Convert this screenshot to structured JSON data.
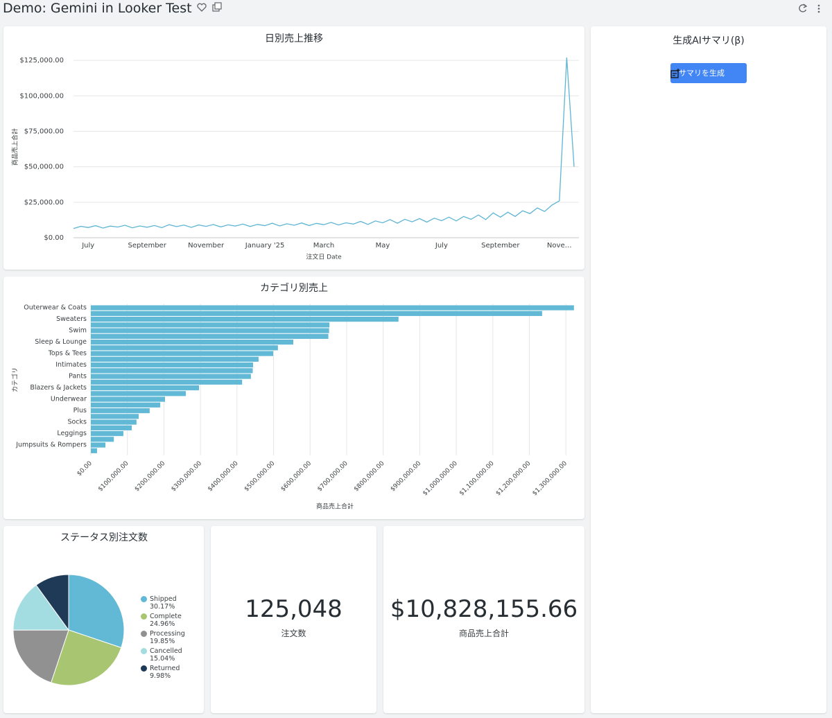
{
  "header": {
    "title": "Demo: Gemini in Looker Test"
  },
  "chart_data": [
    {
      "type": "line",
      "title": "日別売上推移",
      "x_label": "注文日 Date",
      "y_label": "商品売上合計",
      "color": "#5db5d3",
      "x": [
        "2024-06",
        "2024-06",
        "2024-07",
        "2024-07",
        "2024-07",
        "2024-07",
        "2024-08",
        "2024-08",
        "2024-08",
        "2024-08",
        "2024-09",
        "2024-09",
        "2024-09",
        "2024-09",
        "2024-10",
        "2024-10",
        "2024-10",
        "2024-10",
        "2024-11",
        "2024-11",
        "2024-11",
        "2024-11",
        "2024-12",
        "2024-12",
        "2024-12",
        "2024-12",
        "2025-01",
        "2025-01",
        "2025-01",
        "2025-01",
        "2025-02",
        "2025-02",
        "2025-02",
        "2025-02",
        "2025-03",
        "2025-03",
        "2025-03",
        "2025-03",
        "2025-04",
        "2025-04",
        "2025-04",
        "2025-04",
        "2025-05",
        "2025-05",
        "2025-05",
        "2025-05",
        "2025-06",
        "2025-06",
        "2025-06",
        "2025-06",
        "2025-07",
        "2025-07",
        "2025-07",
        "2025-07",
        "2025-08",
        "2025-08",
        "2025-08",
        "2025-08",
        "2025-09",
        "2025-09",
        "2025-09",
        "2025-09",
        "2025-10",
        "2025-10",
        "2025-10",
        "2025-10",
        "2025-11",
        "2025-11",
        "2025-11"
      ],
      "values": [
        6500,
        8000,
        7200,
        8500,
        6800,
        8200,
        7500,
        8800,
        7000,
        8300,
        7400,
        8600,
        7100,
        9200,
        7800,
        8900,
        7300,
        9000,
        8000,
        9300,
        7600,
        9100,
        8200,
        9600,
        7900,
        9400,
        8500,
        10200,
        8300,
        9800,
        8800,
        10400,
        8600,
        10100,
        9200,
        10800,
        9000,
        10500,
        9600,
        11500,
        9400,
        11800,
        10500,
        12800,
        10200,
        13000,
        11200,
        13500,
        11000,
        13800,
        12000,
        14500,
        11800,
        15000,
        13000,
        16000,
        12800,
        17500,
        14500,
        18000,
        15000,
        19000,
        17000,
        21000,
        18500,
        23000,
        26000,
        127000,
        50000
      ],
      "xticks": [
        {
          "value": "2024-07",
          "label": "July"
        },
        {
          "value": "2024-09",
          "label": "September"
        },
        {
          "value": "2024-11",
          "label": "November"
        },
        {
          "value": "2025-01",
          "label": "January '25"
        },
        {
          "value": "2025-03",
          "label": "March"
        },
        {
          "value": "2025-05",
          "label": "May"
        },
        {
          "value": "2025-07",
          "label": "July"
        },
        {
          "value": "2025-09",
          "label": "September"
        },
        {
          "value": "2025-11",
          "label": "Nove…"
        }
      ],
      "ylim": [
        0,
        127500
      ],
      "yticks": [
        {
          "value": 0,
          "label": "$0.00"
        },
        {
          "value": 25000,
          "label": "$25,000.00"
        },
        {
          "value": 50000,
          "label": "$50,000.00"
        },
        {
          "value": 75000,
          "label": "$75,000.00"
        },
        {
          "value": 100000,
          "label": "$100,000.00"
        },
        {
          "value": 125000,
          "label": "$125,000.00"
        }
      ],
      "grid": true
    },
    {
      "type": "bar",
      "orientation": "horizontal",
      "title": "カテゴリ別売上",
      "x_label": "商品売上合計",
      "y_label": "カテゴリ",
      "color": "#62b9d6",
      "categories": [
        "Outerwear & Coats",
        null,
        "Sweaters",
        null,
        "Swim",
        null,
        "Sleep & Lounge",
        null,
        "Tops & Tees",
        null,
        "Intimates",
        null,
        "Pants",
        null,
        "Blazers & Jackets",
        null,
        "Underwear",
        null,
        "Plus",
        null,
        "Socks",
        null,
        "Leggings",
        null,
        "Jumpsuits & Rompers",
        null
      ],
      "values": [
        1322000,
        1235000,
        842000,
        653000,
        652000,
        650000,
        554000,
        512000,
        499000,
        459000,
        444000,
        443000,
        438000,
        414000,
        296000,
        260000,
        203000,
        190000,
        161000,
        131000,
        125000,
        112000,
        89000,
        63000,
        40000,
        17000
      ],
      "xlim": [
        0,
        1330000
      ],
      "xticks": [
        {
          "value": 0,
          "label": "$0.00"
        },
        {
          "value": 100000,
          "label": "$100,000.00"
        },
        {
          "value": 200000,
          "label": "$200,000.00"
        },
        {
          "value": 300000,
          "label": "$300,000.00"
        },
        {
          "value": 400000,
          "label": "$400,000.00"
        },
        {
          "value": 500000,
          "label": "$500,000.00"
        },
        {
          "value": 600000,
          "label": "$600,000.00"
        },
        {
          "value": 700000,
          "label": "$700,000.00"
        },
        {
          "value": 800000,
          "label": "$800,000.00"
        },
        {
          "value": 900000,
          "label": "$900,000.00"
        },
        {
          "value": 1000000,
          "label": "$1,000,000.00"
        },
        {
          "value": 1100000,
          "label": "$1,100,000.00"
        },
        {
          "value": 1200000,
          "label": "$1,200,000.00"
        },
        {
          "value": 1300000,
          "label": "$1,300,000.00"
        }
      ],
      "grid": true
    },
    {
      "type": "pie",
      "title": "ステータス別注文数",
      "categories": [
        "Shipped",
        "Complete",
        "Processing",
        "Cancelled",
        "Returned"
      ],
      "values": [
        30.17,
        24.96,
        19.85,
        15.04,
        9.98
      ],
      "value_labels": [
        "30.17%",
        "24.96%",
        "19.85%",
        "15.04%",
        "9.98%"
      ],
      "colors": [
        "#62b9d6",
        "#a8c672",
        "#919191",
        "#a3dde2",
        "#1e3a56"
      ],
      "legend": "right"
    }
  ],
  "kpis": [
    {
      "value": "125,048",
      "label": "注文数"
    },
    {
      "value": "$10,828,155.66",
      "label": "商品売上合計"
    }
  ],
  "summary": {
    "title": "生成AIサマリ(β)",
    "button": "サマリを生成"
  }
}
